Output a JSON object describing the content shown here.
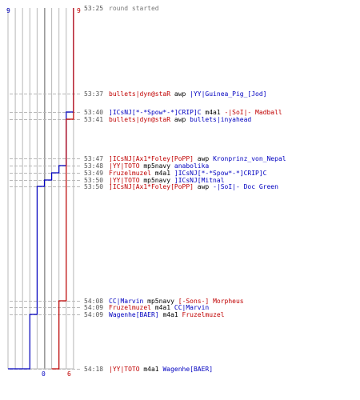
{
  "chart_data": {
    "type": "line",
    "title": "",
    "xlabel": "",
    "ylabel": "",
    "colors": {
      "blue": "#0000c0",
      "red": "#c00000",
      "text_default": "#000000",
      "time": "#555555",
      "grid": "#b8b8b8",
      "grid_dark": "#808080",
      "note": "#777777"
    },
    "start_labels": {
      "blue": "9",
      "red": "9"
    },
    "end_labels": {
      "blue": "0",
      "red": "6"
    },
    "series": [
      {
        "color": "blue",
        "values": [
          9,
          9,
          8,
          8,
          8,
          7,
          6,
          5,
          4,
          4,
          4,
          3,
          2,
          1,
          1,
          0
        ]
      },
      {
        "color": "red",
        "values": [
          9,
          9,
          9,
          8,
          8,
          8,
          8,
          8,
          8,
          7,
          7,
          7,
          7,
          7,
          6,
          6
        ]
      }
    ],
    "events": [
      {
        "time": "53:25",
        "segments": [
          {
            "text": "round started",
            "color": "note"
          }
        ]
      },
      {
        "time": "53:37",
        "segments": [
          {
            "text": "bullets|dyn@staR",
            "color": "red"
          },
          {
            "text": " awp ",
            "color": "text_default"
          },
          {
            "text": "|YY|Guinea_Pig_[Jod]",
            "color": "blue"
          }
        ]
      },
      {
        "time": "53:40",
        "segments": [
          {
            "text": "]ICsNJ[*-*Spow*-*]CRIP]C",
            "color": "blue"
          },
          {
            "text": " m4a1 ",
            "color": "text_default"
          },
          {
            "text": "-|SoI|- Madball",
            "color": "red"
          }
        ]
      },
      {
        "time": "53:41",
        "segments": [
          {
            "text": "bullets|dyn@staR",
            "color": "red"
          },
          {
            "text": " awp ",
            "color": "text_default"
          },
          {
            "text": "bullets|inyahead",
            "color": "blue"
          }
        ]
      },
      {
        "time": "53:47",
        "segments": [
          {
            "text": "]ICsNJ[Ax1*Foley[PoPP]",
            "color": "red"
          },
          {
            "text": " awp ",
            "color": "text_default"
          },
          {
            "text": "Kronprinz_von_Nepal",
            "color": "blue"
          }
        ]
      },
      {
        "time": "53:48",
        "segments": [
          {
            "text": "|YY|TOTO",
            "color": "red"
          },
          {
            "text": " mp5navy ",
            "color": "text_default"
          },
          {
            "text": "anabolika",
            "color": "blue"
          }
        ]
      },
      {
        "time": "53:49",
        "segments": [
          {
            "text": "Fruzelmuzel",
            "color": "red"
          },
          {
            "text": " m4a1 ",
            "color": "text_default"
          },
          {
            "text": "]ICsNJ[*-*Spow*-*]CRIP]C",
            "color": "blue"
          }
        ]
      },
      {
        "time": "53:50",
        "segments": [
          {
            "text": "|YY|TOTO",
            "color": "red"
          },
          {
            "text": " mp5navy ",
            "color": "text_default"
          },
          {
            "text": "]ICsNJ[Mitnal",
            "color": "blue"
          }
        ]
      },
      {
        "time": "53:50",
        "segments": [
          {
            "text": "]ICsNJ[Ax1*Foley[PoPP]",
            "color": "red"
          },
          {
            "text": " awp ",
            "color": "text_default"
          },
          {
            "text": "-|SoI|- Doc Green",
            "color": "blue"
          }
        ]
      },
      {
        "time": "54:08",
        "segments": [
          {
            "text": "CC|Marvin",
            "color": "blue"
          },
          {
            "text": " mp5navy ",
            "color": "text_default"
          },
          {
            "text": "[-Sons-] Morpheus",
            "color": "red"
          }
        ]
      },
      {
        "time": "54:09",
        "segments": [
          {
            "text": "Fruzelmuzel",
            "color": "red"
          },
          {
            "text": " m4a1 ",
            "color": "text_default"
          },
          {
            "text": "CC|Marvin",
            "color": "blue"
          }
        ]
      },
      {
        "time": "54:09",
        "segments": [
          {
            "text": "Wagenhe[BAER]",
            "color": "blue"
          },
          {
            "text": " m4a1 ",
            "color": "text_default"
          },
          {
            "text": "Fruzelmuzel",
            "color": "red"
          }
        ]
      },
      {
        "time": "54:18",
        "segments": [
          {
            "text": "|YY|TOTO",
            "color": "red"
          },
          {
            "text": " m4a1 ",
            "color": "text_default"
          },
          {
            "text": "Wagenhe[BAER]",
            "color": "blue"
          }
        ]
      }
    ]
  }
}
